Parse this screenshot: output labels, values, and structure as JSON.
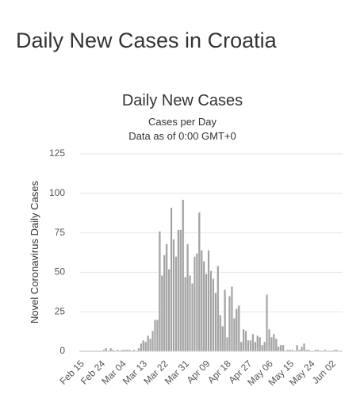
{
  "header": {
    "title": "Daily New Cases in Croatia"
  },
  "chart_data": {
    "type": "bar",
    "title": "Daily New Cases",
    "subtitle": [
      "Cases per Day",
      "Data as of 0:00 GMT+0"
    ],
    "y_label": "Novel Coronavirus Daily Cases",
    "color": "#a3a3a3",
    "grid": true,
    "ylim": [
      0,
      125
    ],
    "yticks": [
      0,
      25,
      50,
      75,
      100,
      125
    ],
    "categories": [
      "Feb 15",
      null,
      null,
      null,
      null,
      null,
      null,
      null,
      null,
      "Feb 24",
      null,
      null,
      null,
      null,
      null,
      null,
      null,
      null,
      "Mar 04",
      null,
      null,
      null,
      null,
      null,
      null,
      null,
      null,
      "Mar 13",
      null,
      null,
      null,
      null,
      null,
      null,
      null,
      null,
      "Mar 22",
      null,
      null,
      null,
      null,
      null,
      null,
      null,
      null,
      "Mar 31",
      null,
      null,
      null,
      null,
      null,
      null,
      null,
      null,
      "Apr 09",
      null,
      null,
      null,
      null,
      null,
      null,
      null,
      null,
      "Apr 18",
      null,
      null,
      null,
      null,
      null,
      null,
      null,
      null,
      "Apr 27",
      null,
      null,
      null,
      null,
      null,
      null,
      null,
      null,
      "May 06",
      null,
      null,
      null,
      null,
      null,
      null,
      null,
      null,
      "May 15",
      null,
      null,
      null,
      null,
      null,
      null,
      null,
      null,
      "May 24",
      null,
      null,
      null,
      null,
      null,
      null,
      null,
      null,
      "Jun 02",
      null,
      null,
      null,
      null
    ],
    "values": [
      0,
      0,
      0,
      0,
      0,
      0,
      0,
      0,
      0,
      0,
      1,
      2,
      0,
      2,
      1,
      0,
      1,
      0,
      1,
      1,
      1,
      1,
      0,
      1,
      0,
      2,
      5,
      7,
      6,
      10,
      8,
      13,
      20,
      20,
      76,
      48,
      61,
      68,
      52,
      91,
      71,
      60,
      77,
      77,
      96,
      47,
      68,
      48,
      43,
      60,
      62,
      88,
      64,
      57,
      49,
      64,
      51,
      46,
      37,
      54,
      23,
      16,
      39,
      9,
      35,
      41,
      21,
      27,
      29,
      6,
      14,
      13,
      7,
      7,
      11,
      6,
      10,
      9,
      4,
      6,
      36,
      14,
      9,
      11,
      8,
      3,
      4,
      4,
      0,
      1,
      1,
      1,
      0,
      4,
      1,
      3,
      5,
      1,
      1,
      0,
      0,
      1,
      1,
      0,
      0,
      1,
      0,
      0,
      0,
      1,
      1,
      0,
      0
    ]
  }
}
